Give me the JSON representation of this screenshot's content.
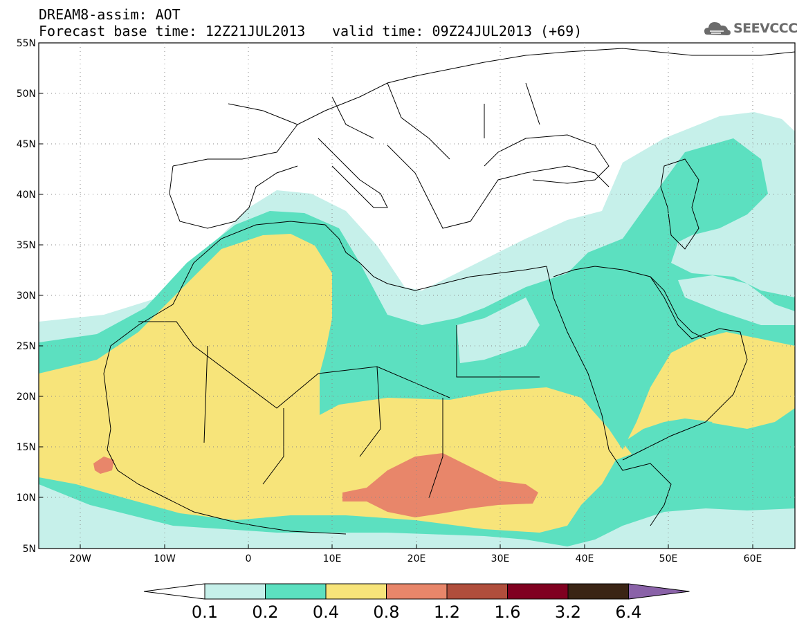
{
  "header": {
    "line1": "DREAM8-assim: AOT",
    "line2": "Forecast base time: 12Z21JUL2013",
    "valid": "valid time: 09Z24JUL2013 (+69)",
    "logo_text": "SEEVCCC",
    "logo_icon": "cloud-icon"
  },
  "map": {
    "lon_labels": [
      "20W",
      "10W",
      "0",
      "10E",
      "20E",
      "30E",
      "40E",
      "50E",
      "60E"
    ],
    "lat_labels": [
      "55N",
      "50N",
      "45N",
      "40N",
      "35N",
      "30N",
      "25N",
      "20N",
      "15N",
      "10N",
      "5N"
    ]
  },
  "colorbar": {
    "labels": [
      "0.1",
      "0.2",
      "0.4",
      "0.8",
      "1.2",
      "1.6",
      "3.2",
      "6.4"
    ],
    "colors": [
      "#ffffff",
      "#c6f0ea",
      "#5ce0c0",
      "#f7e47a",
      "#e8866a",
      "#b04e3c",
      "#800020",
      "#3a2414",
      "#8a62a8"
    ]
  }
}
